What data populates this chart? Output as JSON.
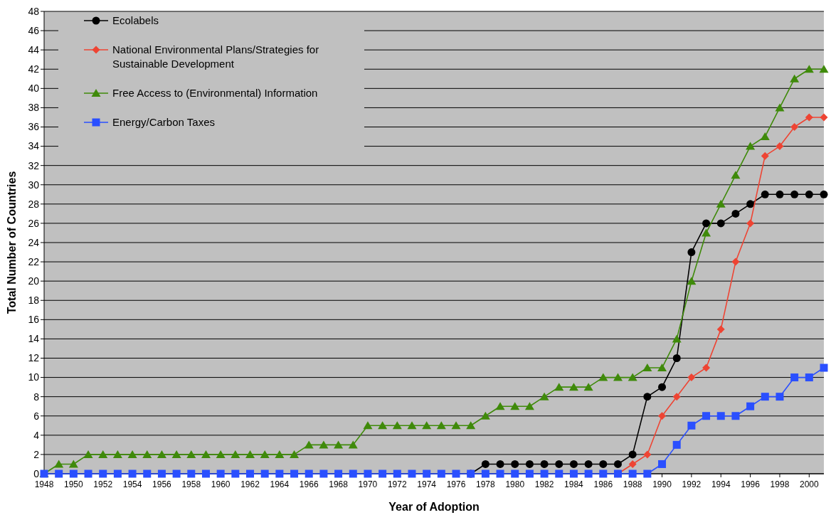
{
  "chart_data": {
    "type": "line",
    "xlabel": "Year of Adoption",
    "ylabel": "Total Number of Countries",
    "x": [
      1948,
      1949,
      1950,
      1951,
      1952,
      1953,
      1954,
      1955,
      1956,
      1957,
      1958,
      1959,
      1960,
      1961,
      1962,
      1963,
      1964,
      1965,
      1966,
      1967,
      1968,
      1969,
      1970,
      1971,
      1972,
      1973,
      1974,
      1975,
      1976,
      1977,
      1978,
      1979,
      1980,
      1981,
      1982,
      1983,
      1984,
      1985,
      1986,
      1987,
      1988,
      1989,
      1990,
      1991,
      1992,
      1993,
      1994,
      1995,
      1996,
      1997,
      1998,
      1999,
      2000,
      2001
    ],
    "series": [
      {
        "name": "Ecolabels",
        "color": "#000000",
        "marker": "circle",
        "values": [
          null,
          null,
          null,
          null,
          null,
          null,
          null,
          null,
          null,
          null,
          null,
          null,
          null,
          null,
          null,
          null,
          null,
          null,
          null,
          null,
          null,
          null,
          null,
          null,
          null,
          null,
          null,
          null,
          null,
          0,
          1,
          1,
          1,
          1,
          1,
          1,
          1,
          1,
          1,
          1,
          2,
          8,
          9,
          12,
          23,
          26,
          26,
          27,
          28,
          29,
          29,
          29,
          29,
          29
        ]
      },
      {
        "name": "National Environmental Plans/Strategies for\nSustainable Development",
        "color": "#ee4433",
        "marker": "diamond",
        "values": [
          null,
          null,
          null,
          null,
          null,
          null,
          null,
          null,
          null,
          null,
          null,
          null,
          null,
          null,
          null,
          null,
          null,
          null,
          null,
          null,
          null,
          null,
          null,
          null,
          null,
          null,
          null,
          null,
          null,
          null,
          null,
          null,
          null,
          null,
          null,
          null,
          null,
          null,
          null,
          0,
          1,
          2,
          6,
          8,
          10,
          11,
          15,
          22,
          26,
          33,
          34,
          36,
          37,
          37
        ]
      },
      {
        "name": "Free Access to (Environmental) Information",
        "color": "#3f8a0a",
        "marker": "triangle",
        "values": [
          0,
          1,
          1,
          2,
          2,
          2,
          2,
          2,
          2,
          2,
          2,
          2,
          2,
          2,
          2,
          2,
          2,
          2,
          3,
          3,
          3,
          3,
          5,
          5,
          5,
          5,
          5,
          5,
          5,
          5,
          6,
          7,
          7,
          7,
          8,
          9,
          9,
          9,
          10,
          10,
          10,
          11,
          11,
          14,
          20,
          25,
          28,
          31,
          34,
          35,
          38,
          41,
          42,
          42
        ]
      },
      {
        "name": "Energy/Carbon Taxes",
        "color": "#2a4fff",
        "marker": "square",
        "values": [
          0,
          0,
          0,
          0,
          0,
          0,
          0,
          0,
          0,
          0,
          0,
          0,
          0,
          0,
          0,
          0,
          0,
          0,
          0,
          0,
          0,
          0,
          0,
          0,
          0,
          0,
          0,
          0,
          0,
          0,
          0,
          0,
          0,
          0,
          0,
          0,
          0,
          0,
          0,
          0,
          0,
          0,
          1,
          3,
          5,
          6,
          6,
          6,
          7,
          8,
          8,
          10,
          10,
          11
        ]
      }
    ],
    "xlim": [
      1948,
      2001
    ],
    "xticks": [
      1948,
      1950,
      1952,
      1954,
      1956,
      1958,
      1960,
      1962,
      1964,
      1966,
      1968,
      1970,
      1972,
      1974,
      1976,
      1978,
      1980,
      1982,
      1984,
      1986,
      1988,
      1990,
      1992,
      1994,
      1996,
      1998,
      2000
    ],
    "ylim": [
      0,
      48
    ],
    "yticks": [
      0,
      2,
      4,
      6,
      8,
      10,
      12,
      14,
      16,
      18,
      20,
      22,
      24,
      26,
      28,
      30,
      32,
      34,
      36,
      38,
      40,
      42,
      44,
      46,
      48
    ],
    "grid": "y",
    "legend": "top left"
  }
}
